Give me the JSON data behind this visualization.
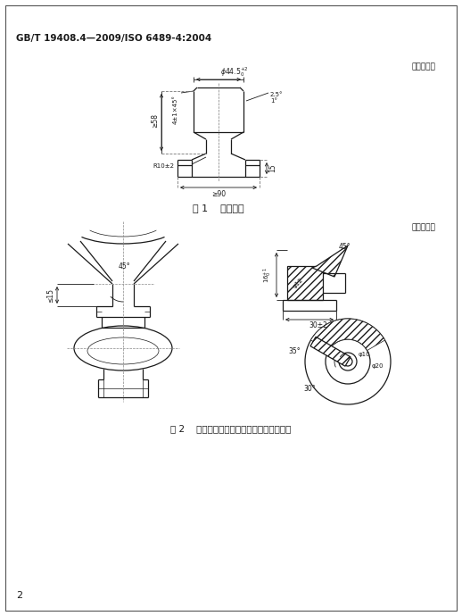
{
  "title_std": "GB/T 19408.4—2009/ISO 6489-4:2004",
  "unit_label": "单位为毫米",
  "fig1_caption": "图 1    销子尺寸",
  "fig2_caption": "图 2    限位器边界面的尺寸（最大尺寸情况）",
  "page_num": "2",
  "bg_color": "#ffffff",
  "line_color": "#1a1a1a"
}
